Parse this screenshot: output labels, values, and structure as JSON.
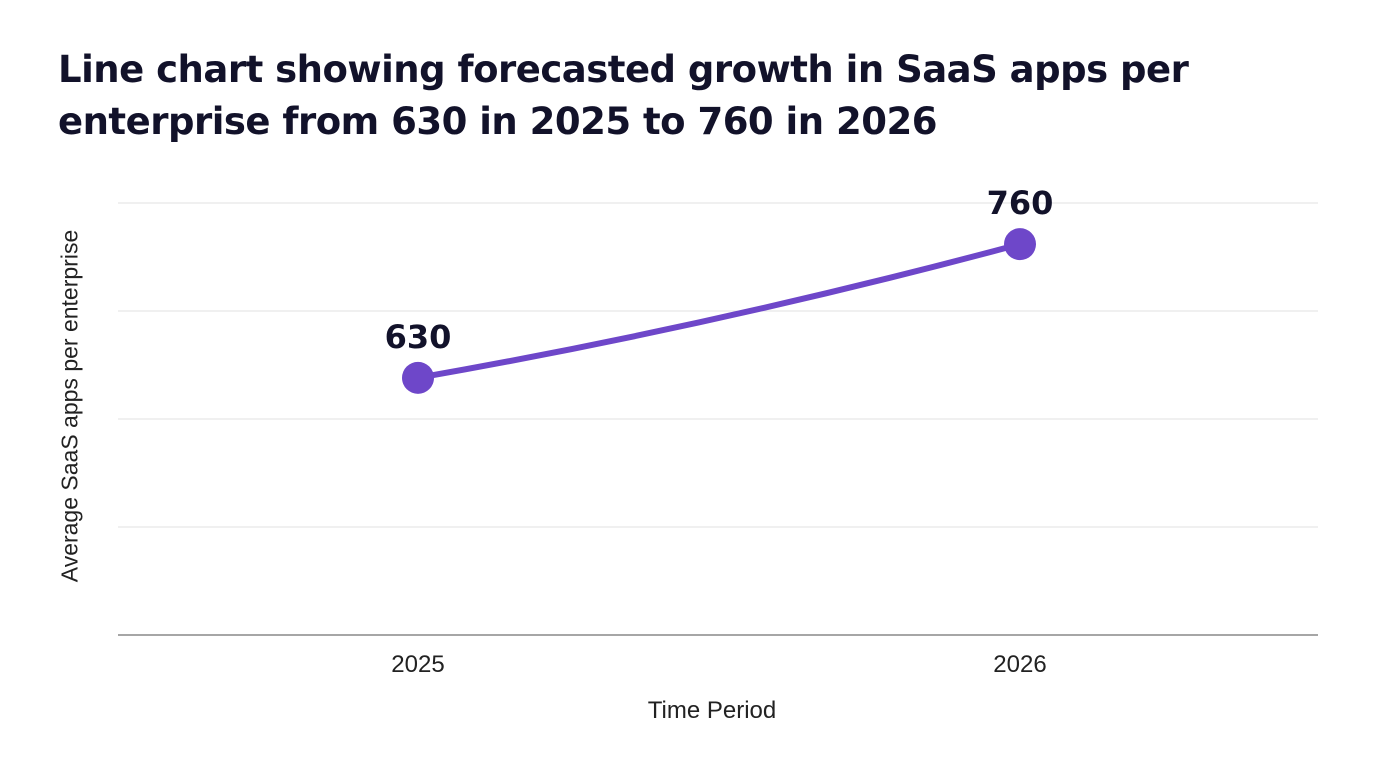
{
  "chart_data": {
    "type": "line",
    "title": "Line chart showing forecasted growth in SaaS apps per enterprise from 630 in 2025 to 760 in 2026",
    "xlabel": "Time Period",
    "ylabel": "Average SaaS apps per enterprise",
    "categories": [
      "2025",
      "2026"
    ],
    "series": [
      {
        "values": [
          630,
          760
        ],
        "data_labels": [
          "630",
          "760"
        ]
      }
    ],
    "ylim": [
      380,
      800
    ],
    "gridlines": [
      800,
      695,
      590,
      485
    ],
    "grid": true,
    "legend": "none",
    "colors": {
      "line": "#6e47c9",
      "grid": "#e2e2e2",
      "axis": "#888888",
      "text": "#12122a"
    }
  }
}
